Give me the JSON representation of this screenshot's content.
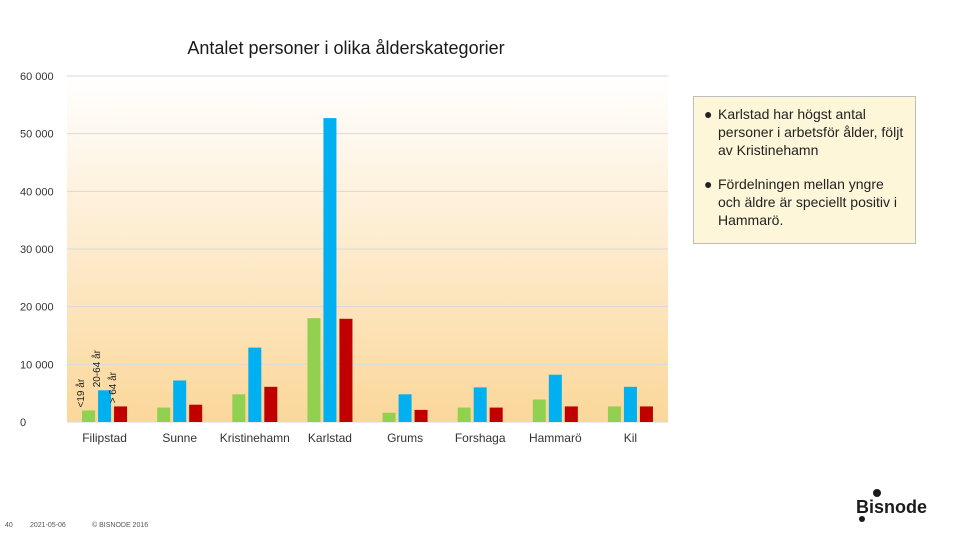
{
  "chart_data": {
    "type": "bar",
    "title": "Antalet personer i olika ålderskategorier",
    "categories": [
      "Filipstad",
      "Sunne",
      "Kristinehamn",
      "Karlstad",
      "Grums",
      "Forshaga",
      "Hammarö",
      "Kil"
    ],
    "series": [
      {
        "name": "<19 år",
        "color": "#92d050",
        "values": [
          2000,
          2500,
          4800,
          18000,
          1600,
          2500,
          3900,
          2700
        ]
      },
      {
        "name": "20-64 år",
        "color": "#00b0f0",
        "values": [
          5500,
          7200,
          12900,
          52700,
          4800,
          6000,
          8200,
          6100
        ]
      },
      {
        "name": "> 64 år",
        "color": "#c00000",
        "values": [
          2700,
          3000,
          6100,
          17900,
          2100,
          2500,
          2700,
          2700
        ]
      }
    ],
    "ylim": [
      0,
      60000
    ],
    "yticks": [
      0,
      10000,
      20000,
      30000,
      40000,
      50000,
      60000
    ],
    "ytick_labels": [
      "0",
      "10 000",
      "20 000",
      "30 000",
      "40 000",
      "50 000",
      "60 000"
    ],
    "grid": true,
    "legend": "series names printed vertically next to first category bars"
  },
  "notes": [
    {
      "bullet": "●",
      "text": "Karlstad har högst antal personer i arbetsför ålder, följt av Kristinehamn"
    },
    {
      "bullet": "●",
      "text": "Fördelningen mellan yngre och äldre är speciellt positiv i Hammarö."
    }
  ],
  "footer": {
    "page_number": "40",
    "date": "2021-05-06",
    "copyright": "© BISNODE 2016"
  },
  "logo": {
    "text": "Bisnode"
  },
  "colors": {
    "plot_bg_top": "#ffffff",
    "plot_bg_bottom": "#fbd79a",
    "note_bg": "#fdf6d8"
  }
}
